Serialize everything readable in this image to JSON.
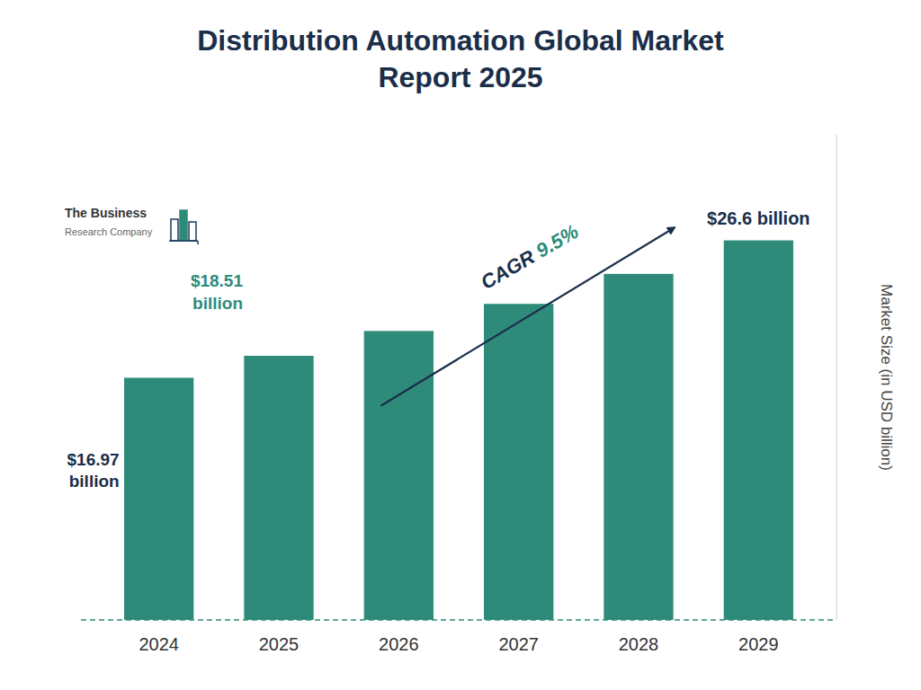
{
  "chart_data": {
    "type": "bar",
    "title": "Distribution Automation Global Market\nReport 2025",
    "ylabel": "Market Size (in USD billion)",
    "categories": [
      "2024",
      "2025",
      "2026",
      "2027",
      "2028",
      "2029"
    ],
    "values": [
      16.97,
      18.51,
      20.25,
      22.15,
      24.25,
      26.6
    ],
    "color": "#2E8B7A",
    "ylim": [
      0,
      34
    ],
    "tick_labels": "x",
    "grid": false,
    "annotations": [
      {
        "text": "$16.97\nbillion",
        "color": "#1a2e4a"
      },
      {
        "text": "$18.51\nbillion",
        "color": "#2E8B7A"
      },
      {
        "text": "$26.6 billion",
        "color": "#1a2e4a"
      },
      {
        "text": "CAGR ",
        "color": "#1a2e4a"
      },
      {
        "text": "9.5%",
        "color": "#2E8B7A"
      },
      {
        "text": "The Business"
      },
      {
        "text": "Research Company"
      }
    ]
  }
}
